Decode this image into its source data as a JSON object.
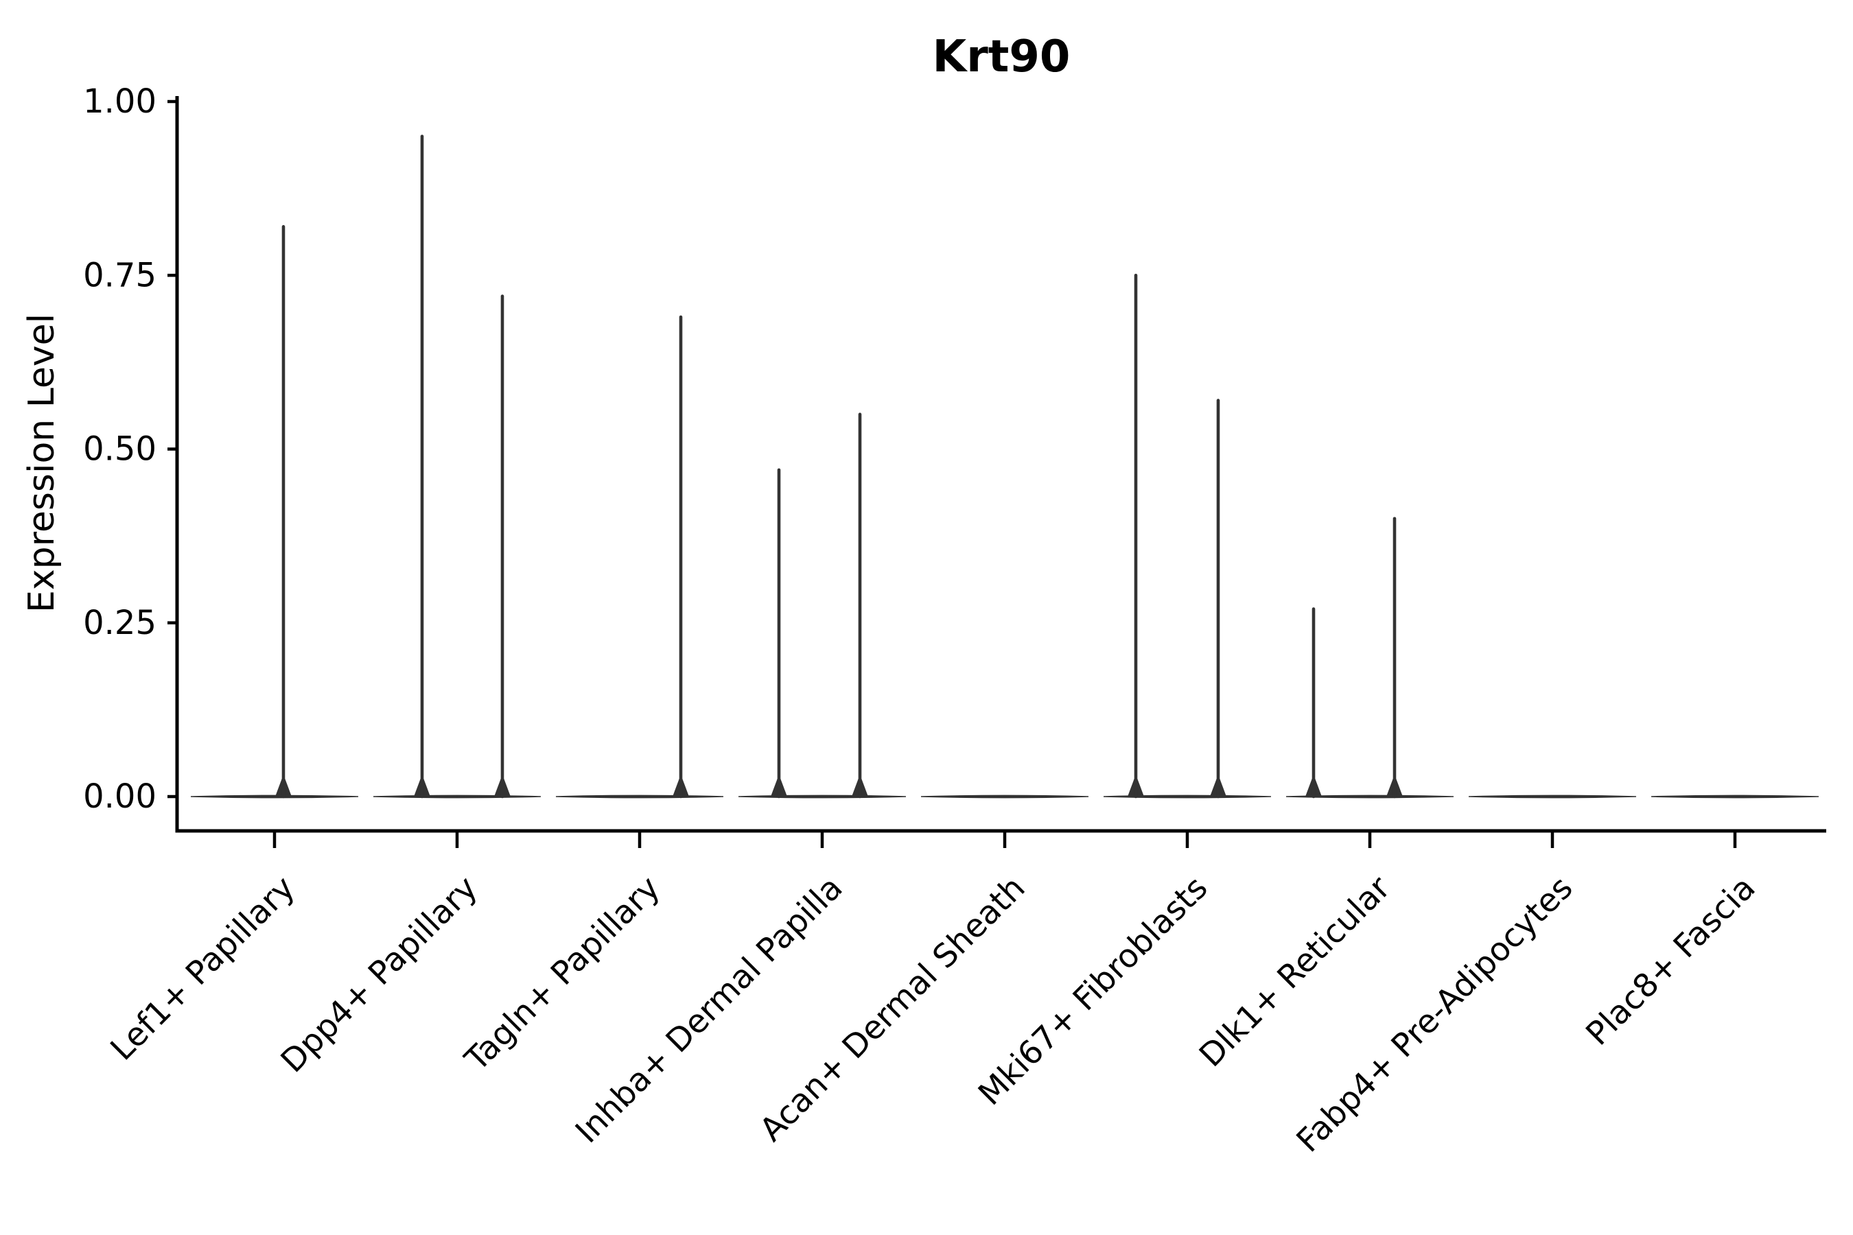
{
  "title": "Krt90",
  "chart_data": {
    "type": "violin",
    "title": "Krt90",
    "xlabel": "",
    "ylabel": "Expression Level",
    "ylim": [
      0.0,
      1.0
    ],
    "grid": false,
    "legend": null,
    "x_tick_rotation": 45,
    "yticks": [
      {
        "value": 1.0,
        "label": "1.00"
      },
      {
        "value": 0.75,
        "label": "0.75"
      },
      {
        "value": 0.5,
        "label": "0.50"
      },
      {
        "value": 0.25,
        "label": "0.25"
      },
      {
        "value": 0.0,
        "label": "0.00"
      }
    ],
    "categories": [
      "Lef1+ Papillary",
      "Dpp4+ Papillary",
      "Tagln+ Papillary",
      "Inhba+ Dermal Papilla",
      "Acan+ Dermal Sheath",
      "Mki67+ Fibroblasts",
      "Dlk1+ Reticular",
      "Fabp4+ Pre-Adipocytes",
      "Plac8+ Fascia"
    ],
    "series": [
      {
        "category": "Lef1+ Papillary",
        "baseline_value": 0.0,
        "spikes": [
          {
            "x_offset": 13,
            "value": 0.82
          }
        ]
      },
      {
        "category": "Dpp4+ Papillary",
        "baseline_value": 0.0,
        "spikes": [
          {
            "x_offset": -51,
            "value": 0.95
          },
          {
            "x_offset": 66,
            "value": 0.72
          }
        ]
      },
      {
        "category": "Tagln+ Papillary",
        "baseline_value": 0.0,
        "spikes": [
          {
            "x_offset": 60,
            "value": 0.69
          }
        ]
      },
      {
        "category": "Inhba+ Dermal Papilla",
        "baseline_value": 0.0,
        "spikes": [
          {
            "x_offset": -63,
            "value": 0.47
          },
          {
            "x_offset": 55,
            "value": 0.55
          }
        ]
      },
      {
        "category": "Acan+ Dermal Sheath",
        "baseline_value": 0.0,
        "spikes": []
      },
      {
        "category": "Mki67+ Fibroblasts",
        "baseline_value": 0.0,
        "spikes": [
          {
            "x_offset": -75,
            "value": 0.75
          },
          {
            "x_offset": 45,
            "value": 0.57
          }
        ]
      },
      {
        "category": "Dlk1+ Reticular",
        "baseline_value": 0.0,
        "spikes": [
          {
            "x_offset": -82,
            "value": 0.27
          },
          {
            "x_offset": 36,
            "value": 0.4
          }
        ]
      },
      {
        "category": "Fabp4+ Pre-Adipocytes",
        "baseline_value": 0.0,
        "spikes": []
      },
      {
        "category": "Plac8+ Fascia",
        "baseline_value": 0.0,
        "spikes": []
      }
    ],
    "colors": {
      "violin": "#333333",
      "axis": "#000000",
      "text": "#000000",
      "background": "#ffffff"
    }
  }
}
